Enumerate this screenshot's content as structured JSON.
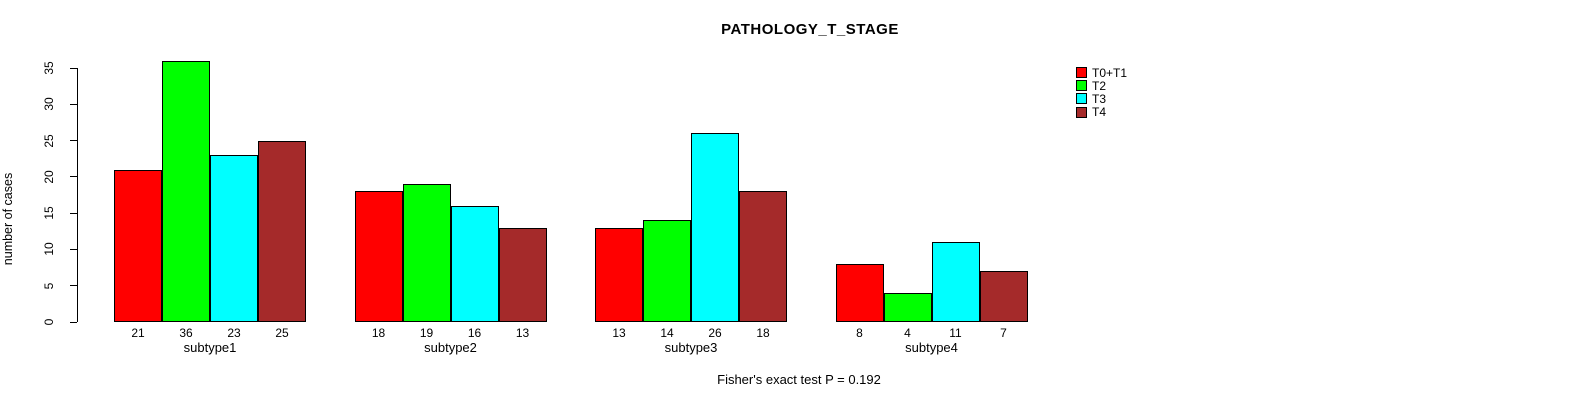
{
  "chart": {
    "title": "PATHOLOGY_T_STAGE",
    "y_axis_label": "number of cases",
    "annotation": "Fisher's exact test P = 0.192"
  },
  "chart_data": {
    "type": "bar",
    "title": "PATHOLOGY_T_STAGE",
    "xlabel": "",
    "ylabel": "number of cases",
    "categories": [
      "subtype1",
      "subtype2",
      "subtype3",
      "subtype4"
    ],
    "series": [
      {
        "name": "T0+T1",
        "color": "#FF0000",
        "values": [
          21,
          18,
          13,
          8
        ]
      },
      {
        "name": "T2",
        "color": "#00FF00",
        "values": [
          36,
          19,
          14,
          4
        ]
      },
      {
        "name": "T3",
        "color": "#00FFFF",
        "values": [
          23,
          16,
          26,
          11
        ]
      },
      {
        "name": "T4",
        "color": "#A52A2A",
        "values": [
          25,
          13,
          18,
          7
        ]
      }
    ],
    "ylim": [
      0,
      35
    ],
    "yticks": [
      0,
      5,
      10,
      15,
      20,
      25,
      30,
      35
    ],
    "bar_value_labels_shown": true,
    "grid": false,
    "legend_position": "top-right",
    "legend_entries": [
      "T0+T1",
      "T2",
      "T3",
      "T4"
    ],
    "annotation": "Fisher's exact test P = 0.192",
    "background_color": "#FFFFFF",
    "axis_color": "#000000"
  }
}
